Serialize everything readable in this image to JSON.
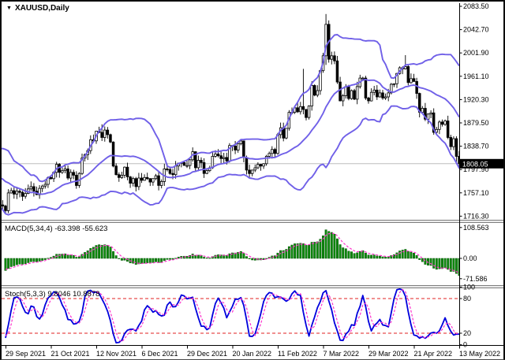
{
  "header": {
    "symbol_label": "XAUUSD,Daily",
    "dropdown_icon": "down-triangle"
  },
  "panels": {
    "macd": {
      "label": "MACD(5,34,4) -63.398 -55.623",
      "axis_labels": [
        "108.563",
        "0.00",
        "-71.586"
      ]
    },
    "stoch": {
      "label": "Stoch(5,3,3) 9.8046 10.8878",
      "axis_labels": [
        "100",
        "80",
        "20",
        "0"
      ]
    }
  },
  "colors": {
    "panel_bg": "#ffffff",
    "bands": "#7060e8",
    "candle_outline": "#000000",
    "bull_fill": "#ffffff",
    "bear_fill": "#000000",
    "macd_hist": "#0d8a0d",
    "macd_hist_edge": "#035703",
    "signal_line": "#ff33cc",
    "stoch_k": "#0000dd",
    "stoch_d": "#ff33cc",
    "levels": "#e02020",
    "current_line": "#bdbdbd",
    "tag_bg": "#000000",
    "tag_text": "#ffffff",
    "axis_text": "#000000",
    "separator_dark": "#7d7d7d",
    "separator_light": "#ececec"
  },
  "chart_data": {
    "type": "candlestick",
    "symbol": "XAUUSD",
    "timeframe": "Daily",
    "title": "XAUUSD,Daily",
    "last_price": 1808.05,
    "last_price_label": "1808.05",
    "price_axis": {
      "ticks": [
        "2083.50",
        "2042.70",
        "2001.90",
        "1961.10",
        "1920.30",
        "1879.50",
        "1838.70",
        "1797.90",
        "1757.10",
        "1716.30"
      ],
      "tick_step": 40.8,
      "min": 1716.3,
      "max": 2083.5
    },
    "time_axis": {
      "labels": [
        "29 Sep 2021",
        "21 Oct 2021",
        "12 Nov 2021",
        "6 Dec 2021",
        "29 Dec 2021",
        "20 Jan 2022",
        "11 Feb 2022",
        "7 Mar 2022",
        "29 Mar 2022",
        "21 Apr 2022",
        "13 May 2022"
      ],
      "bars_per_label": 16
    },
    "pre_closes": [
      1814,
      1800,
      1827,
      1823,
      1794,
      1794,
      1789,
      1800,
      1794,
      1792,
      1754,
      1782,
      1794,
      1774,
      1756,
      1751,
      1765,
      1750,
      1736,
      1734
    ],
    "closes": [
      1726,
      1757,
      1761,
      1755,
      1760,
      1758,
      1751,
      1756,
      1764,
      1768,
      1760,
      1754,
      1765,
      1769,
      1772,
      1784,
      1782,
      1793,
      1807,
      1793,
      1796,
      1799,
      1783,
      1793,
      1788,
      1770,
      1791,
      1818,
      1824,
      1831,
      1850,
      1848,
      1865,
      1863,
      1854,
      1867,
      1859,
      1846,
      1804,
      1789,
      1784,
      1788,
      1802,
      1785,
      1774,
      1782,
      1768,
      1783,
      1779,
      1784,
      1782,
      1776,
      1782,
      1787,
      1770,
      1777,
      1799,
      1798,
      1791,
      1789,
      1804,
      1809,
      1810,
      1805,
      1805,
      1815,
      1829,
      1801,
      1814,
      1810,
      1791,
      1796,
      1801,
      1821,
      1825,
      1822,
      1817,
      1819,
      1813,
      1840,
      1839,
      1832,
      1843,
      1848,
      1819,
      1797,
      1791,
      1797,
      1801,
      1807,
      1804,
      1808,
      1821,
      1826,
      1833,
      1826,
      1859,
      1871,
      1853,
      1870,
      1898,
      1898,
      1906,
      1899,
      1908,
      1903,
      1889,
      1909,
      1945,
      1928,
      1936,
      1971,
      1997,
      2052,
      1991,
      1997,
      1988,
      1951,
      1918,
      1927,
      1943,
      1922,
      1936,
      1921,
      1943,
      1958,
      1958,
      1923,
      1918,
      1933,
      1937,
      1925,
      1932,
      1923,
      1925,
      1932,
      1947,
      1948,
      1966,
      1976,
      1974,
      1978,
      1950,
      1957,
      1952,
      1931,
      1898,
      1905,
      1886,
      1895,
      1897,
      1863,
      1868,
      1881,
      1877,
      1883,
      1854,
      1838,
      1852,
      1821,
      1808.05
    ],
    "wick_overrides": {
      "0": {
        "low": 1721
      },
      "34": {
        "high": 1877
      },
      "105": {
        "high": 1974
      },
      "112": {
        "high": 2002
      },
      "113": {
        "high": 2070,
        "low": 1981
      },
      "141": {
        "high": 1998
      },
      "159": {
        "low": 1811
      }
    },
    "indicators": {
      "bollinger": {
        "period": 20,
        "deviation": 2
      },
      "macd": {
        "fast": 5,
        "slow": 34,
        "signal": 4,
        "current_macd": -63.398,
        "current_signal": -55.623,
        "axis_ticks": [
          108.563,
          0.0,
          -71.586
        ]
      },
      "stochastic": {
        "k": 5,
        "d": 3,
        "slowing": 3,
        "current_k": 9.8046,
        "current_d": 10.8878,
        "levels": [
          80,
          20
        ],
        "axis_ticks": [
          100,
          80,
          20,
          0
        ]
      }
    }
  }
}
